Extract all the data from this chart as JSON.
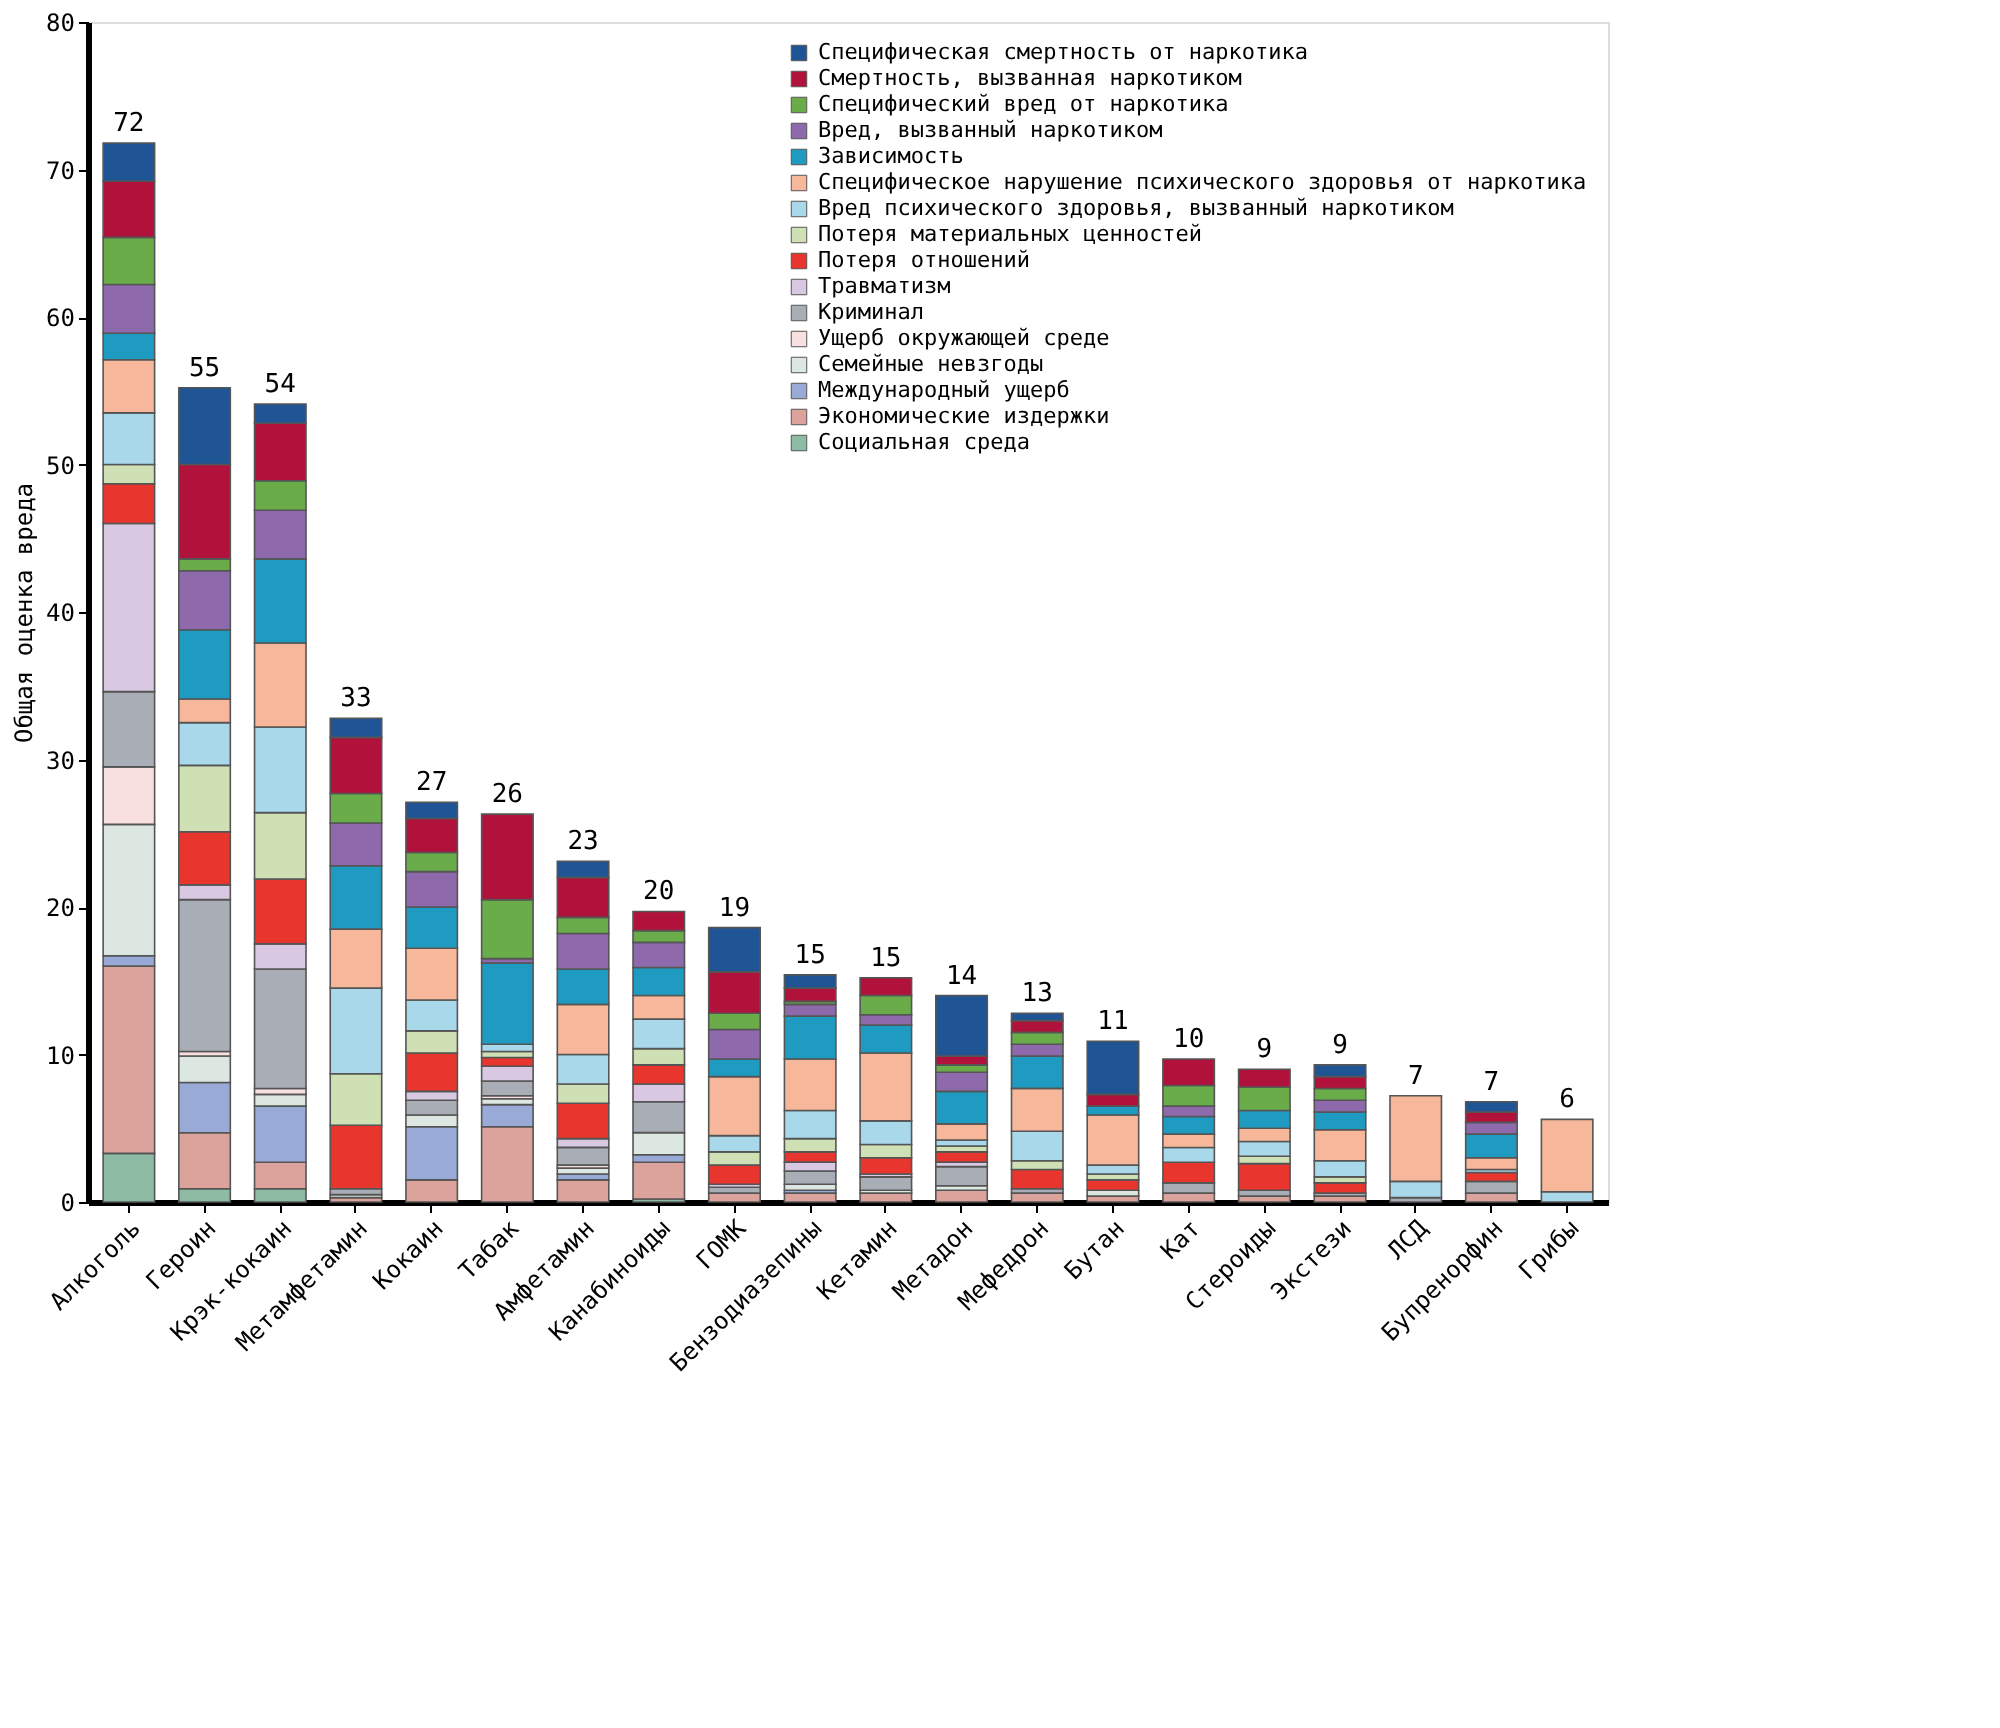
{
  "chart_data": {
    "type": "bar",
    "stacked": true,
    "ylabel": "Общая оценка вреда",
    "categories": [
      "Алкоголь",
      "Героин",
      "Крэк-кокаин",
      "Метамфетамин",
      "Кокаин",
      "Табак",
      "Амфетамин",
      "Канабиноиды",
      "ГОМК",
      "Бензодиазепины",
      "Кетамин",
      "Метадон",
      "Мефедрон",
      "Бутан",
      "Кат",
      "Стероиды",
      "Экстези",
      "ЛСД",
      "Бупренорфин",
      "Грибы"
    ],
    "ylim": [
      0,
      80
    ],
    "yticks": [
      0,
      10,
      20,
      30,
      40,
      50,
      60,
      70,
      80
    ],
    "grid": false,
    "legend": "top right",
    "totals": [
      "72",
      "55",
      "54",
      "33",
      "27",
      "26",
      "23",
      "20",
      "19",
      "15",
      "15",
      "14",
      "13",
      "11",
      "10",
      "9",
      "9",
      "7",
      "7",
      "6"
    ],
    "series": [
      {
        "name": "Социальная среда",
        "color": "#8dbba4",
        "values": [
          3.3,
          0.9,
          0.9,
          0,
          0,
          0,
          0,
          0.2,
          0,
          0,
          0,
          0,
          0,
          0,
          0,
          0,
          0,
          0,
          0,
          0
        ]
      },
      {
        "name": "Экономические издержки",
        "color": "#dba39c",
        "values": [
          12.7,
          3.8,
          1.8,
          0.3,
          1.5,
          5.1,
          1.5,
          2.5,
          0.6,
          0.6,
          0.6,
          0.8,
          0.6,
          0.4,
          0.6,
          0.4,
          0.4,
          0,
          0.6,
          0
        ]
      },
      {
        "name": "Международный ущерб",
        "color": "#9aaad6",
        "values": [
          0.7,
          3.4,
          3.8,
          0,
          3.6,
          1.5,
          0.4,
          0.5,
          0,
          0.2,
          0,
          0,
          0,
          0,
          0,
          0,
          0,
          0,
          0,
          0
        ]
      },
      {
        "name": "Семейные невзгоды",
        "color": "#dde7e2",
        "values": [
          8.9,
          1.8,
          0.8,
          0.2,
          0.8,
          0.4,
          0.4,
          1.5,
          0,
          0.4,
          0.2,
          0.3,
          0,
          0.4,
          0,
          0,
          0,
          0,
          0,
          0
        ]
      },
      {
        "name": "Ущерб окружающей среде",
        "color": "#f8e0e0",
        "values": [
          3.9,
          0.3,
          0.4,
          null,
          null,
          0.2,
          0.2,
          null,
          0,
          0,
          0,
          0,
          0,
          0,
          0,
          0,
          0,
          0,
          0,
          0
        ]
      },
      {
        "name": "Криминал",
        "color": "#a9aeb6",
        "values": [
          5.1,
          10.3,
          8.1,
          0.4,
          1.0,
          1.0,
          1.2,
          2.1,
          0.4,
          0.9,
          0.9,
          1.3,
          0.3,
          0,
          0.7,
          0.4,
          0.2,
          0.3,
          0.8,
          0
        ]
      },
      {
        "name": "Травматизм",
        "color": "#d8c8e2",
        "values": [
          11.4,
          1.0,
          1.7,
          0,
          0.6,
          1.0,
          0.6,
          1.2,
          0.2,
          0.6,
          0.2,
          0.3,
          0,
          0,
          0,
          0,
          0,
          0,
          0,
          0
        ]
      },
      {
        "name": "Потеря отношений",
        "color": "#e8352d",
        "values": [
          2.7,
          3.6,
          4.4,
          4.3,
          2.6,
          0.6,
          2.4,
          1.3,
          1.3,
          0.7,
          1.1,
          0.7,
          1.3,
          0.7,
          1.4,
          1.8,
          0.7,
          0,
          0.6,
          0
        ]
      },
      {
        "name": "Потеря материальных ценностей",
        "color": "#cfe0b4",
        "values": [
          1.3,
          4.5,
          4.5,
          3.5,
          1.5,
          0.4,
          1.3,
          1.1,
          0.9,
          0.9,
          0.9,
          0.4,
          0.6,
          0.4,
          0,
          0.5,
          0.4,
          0,
          0,
          0
        ]
      },
      {
        "name": "Вред психического здоровья, вызванный наркотиком",
        "color": "#a8d8ea",
        "values": [
          3.5,
          2.9,
          5.8,
          5.8,
          2.1,
          0.5,
          2.0,
          2.0,
          1.1,
          1.9,
          1.6,
          0.4,
          2.0,
          0.6,
          1.0,
          1.0,
          1.1,
          1.1,
          0.2,
          0.7
        ]
      },
      {
        "name": "Специфическое нарушение психического здоровья от наркотика",
        "color": "#f7b79b",
        "values": [
          3.6,
          1.6,
          5.7,
          4.0,
          3.5,
          0,
          3.4,
          1.6,
          4.0,
          3.5,
          4.6,
          1.1,
          2.9,
          3.4,
          0.9,
          0.9,
          2.1,
          5.8,
          0.8,
          4.9
        ]
      },
      {
        "name": "Зависимость",
        "color": "#1f9bc2",
        "values": [
          1.8,
          4.7,
          5.7,
          4.3,
          2.8,
          5.5,
          2.4,
          1.9,
          1.2,
          2.9,
          1.9,
          2.2,
          2.2,
          0.6,
          1.2,
          1.2,
          1.2,
          0,
          1.6,
          0
        ]
      },
      {
        "name": "Вред, вызванный наркотиком",
        "color": "#8e6aad",
        "values": [
          3.3,
          4.0,
          3.3,
          2.9,
          2.4,
          0.3,
          2.4,
          1.7,
          2.0,
          0.8,
          0.7,
          1.3,
          0.8,
          0,
          0.7,
          0,
          0.8,
          0,
          0.8,
          0
        ]
      },
      {
        "name": "Специфический вред от наркотика",
        "color": "#6aab4a",
        "values": [
          3.2,
          0.8,
          2.0,
          2.0,
          1.3,
          4.0,
          1.1,
          0.8,
          1.1,
          0.2,
          1.3,
          0.5,
          0.8,
          0,
          1.4,
          1.6,
          0.8,
          0,
          0,
          0
        ]
      },
      {
        "name": "Смертность, вызванная наркотиком",
        "color": "#b0123b",
        "values": [
          3.8,
          6.4,
          3.9,
          3.8,
          2.3,
          5.8,
          2.7,
          1.3,
          2.8,
          0.9,
          1.2,
          0.6,
          0.8,
          0.8,
          1.8,
          1.2,
          0.8,
          0,
          0.7,
          0
        ]
      },
      {
        "name": "Специфическая смертность от наркотика",
        "color": "#1f5594",
        "values": [
          2.6,
          5.2,
          1.3,
          1.3,
          1.1,
          0,
          1.1,
          0,
          3.0,
          0.9,
          0,
          4.1,
          0.5,
          3.6,
          0,
          0,
          0.8,
          0,
          0.7,
          0
        ]
      }
    ]
  }
}
